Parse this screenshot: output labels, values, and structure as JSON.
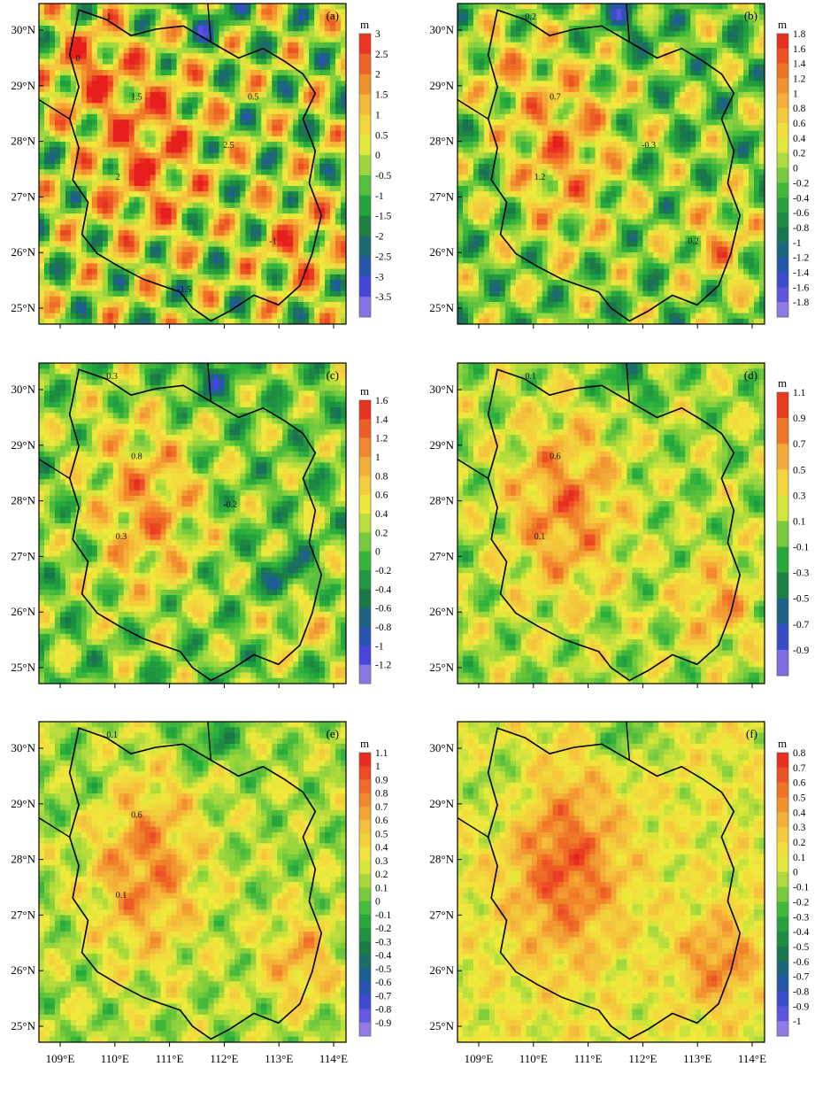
{
  "x_ticks": [
    "109°E",
    "110°E",
    "111°E",
    "112°E",
    "113°E",
    "114°E"
  ],
  "y_ticks": [
    "30°N",
    "29°N",
    "28°N",
    "27°N",
    "26°N",
    "25°N"
  ],
  "panels": [
    {
      "label": "(a)",
      "unit": "m",
      "colorbar_ticks": [
        "3",
        "2.5",
        "2",
        "1.5",
        "1",
        "0.5",
        "0",
        "-0.5",
        "-1",
        "-1.5",
        "-2",
        "-2.5",
        "-3",
        "-3.5"
      ],
      "range": [
        -3.5,
        3
      ],
      "contour_labels": [
        "1",
        "1.5",
        "2",
        "2.5",
        "-1",
        "-1.5",
        "0",
        "0.5"
      ]
    },
    {
      "label": "(b)",
      "unit": "m",
      "colorbar_ticks": [
        "1.8",
        "1.6",
        "1.4",
        "1.2",
        "1",
        "0.8",
        "0.6",
        "0.4",
        "0.2",
        "0",
        "-0.2",
        "-0.4",
        "-0.6",
        "-0.8",
        "-1",
        "-1.2",
        "-1.4",
        "-1.6",
        "-1.8"
      ],
      "range": [
        -1.8,
        1.8
      ],
      "contour_labels": [
        "0.2",
        "0.7",
        "1.2",
        "-0.3",
        "0.2"
      ]
    },
    {
      "label": "(c)",
      "unit": "m",
      "colorbar_ticks": [
        "1.6",
        "1.4",
        "1.2",
        "1",
        "0.8",
        "0.6",
        "0.4",
        "0.2",
        "0",
        "-0.2",
        "-0.4",
        "-0.6",
        "-0.8",
        "-1",
        "-1.2"
      ],
      "range": [
        -1.2,
        1.6
      ],
      "contour_labels": [
        "0.3",
        "0.8",
        "0.3",
        "-0.2"
      ]
    },
    {
      "label": "(d)",
      "unit": "m",
      "colorbar_ticks": [
        "1.1",
        "0.9",
        "0.7",
        "0.5",
        "0.3",
        "0.1",
        "-0.1",
        "-0.3",
        "-0.5",
        "-0.7",
        "-0.9"
      ],
      "range": [
        -0.9,
        1.1
      ],
      "contour_labels": [
        "0.1",
        "0.6",
        "0.1"
      ]
    },
    {
      "label": "(e)",
      "unit": "m",
      "colorbar_ticks": [
        "1.1",
        "1",
        "0.9",
        "0.8",
        "0.7",
        "0.6",
        "0.5",
        "0.4",
        "0.3",
        "0.2",
        "0.1",
        "0",
        "-0.1",
        "-0.2",
        "-0.3",
        "-0.4",
        "-0.5",
        "-0.6",
        "-0.7",
        "-0.8",
        "-0.9"
      ],
      "range": [
        -0.9,
        1.1
      ],
      "contour_labels": [
        "0.1",
        "0.6",
        "0.1"
      ]
    },
    {
      "label": "(f)",
      "unit": "m",
      "colorbar_ticks": [
        "0.8",
        "0.7",
        "0.6",
        "0.5",
        "0.4",
        "0.3",
        "0.2",
        "0.1",
        "0",
        "-0.1",
        "-0.2",
        "-0.3",
        "-0.4",
        "-0.5",
        "-0.6",
        "-0.7",
        "-0.8",
        "-0.9",
        "-1"
      ],
      "range": [
        -1,
        0.8
      ],
      "contour_labels": []
    }
  ]
}
